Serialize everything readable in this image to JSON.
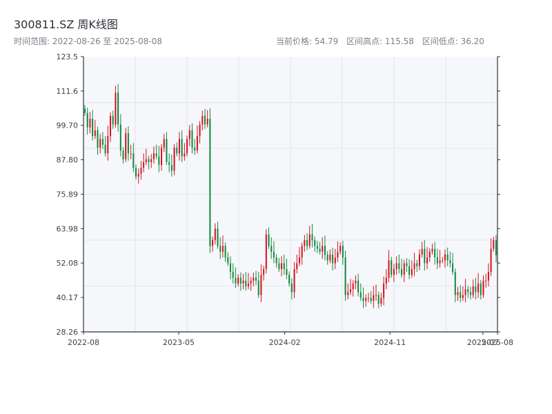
{
  "header": {
    "title": "300811.SZ 周K线图",
    "subtitle": "时间范围: 2022-08-26 至 2025-08-08",
    "current_price": "当前价格: 54.79",
    "range_high": "区间高点: 115.58",
    "range_low": "区间低点: 36.20"
  },
  "colors": {
    "up": "#d6101f",
    "down": "#0f8a3c",
    "plot_bg": "#f5f7fa",
    "grid": "#e1e5ea",
    "axis": "#2b2f36"
  },
  "chart_data": {
    "type": "candlestick",
    "title": "300811.SZ 周K线图",
    "xlabel": "",
    "ylabel": "",
    "x_range": [
      "2022-08-26",
      "2025-08-08"
    ],
    "ylim": [
      28.26,
      123.5
    ],
    "y_ticks": [
      "28.26",
      "40.17",
      "52.08",
      "63.98",
      "75.89",
      "87.80",
      "99.70",
      "111.6",
      "123.5"
    ],
    "x_ticks": [
      {
        "date": "2022-08-26",
        "label": "2022-08"
      },
      {
        "date": "2023-05-01",
        "label": "2023-05"
      },
      {
        "date": "2024-02-01",
        "label": "2024-02"
      },
      {
        "date": "2024-11-01",
        "label": "2024-11"
      },
      {
        "date": "2025-07-01",
        "label": "2025-07"
      },
      {
        "date": "2025-08-08",
        "label": "2025-08"
      }
    ],
    "grid": true,
    "up_color_meaning": "red = close above open",
    "closes": [
      104.0,
      99.0,
      102.0,
      96.0,
      98.0,
      92.0,
      95.0,
      93.0,
      90.0,
      96.0,
      103.0,
      100.0,
      111.0,
      100.0,
      91.0,
      88.0,
      97.0,
      90.0,
      90.0,
      85.0,
      82.0,
      83.0,
      85.0,
      87.0,
      88.0,
      87.0,
      88.0,
      90.0,
      89.0,
      86.0,
      92.0,
      95.0,
      87.0,
      86.0,
      84.0,
      92.0,
      90.0,
      95.0,
      89.0,
      90.0,
      95.0,
      98.0,
      92.0,
      91.0,
      96.0,
      100.0,
      103.0,
      100.0,
      102.0,
      58.0,
      60.0,
      64.0,
      58.0,
      56.0,
      58.0,
      54.0,
      52.0,
      49.0,
      47.0,
      45.0,
      47.0,
      45.0,
      46.0,
      44.0,
      45.0,
      46.0,
      47.0,
      46.0,
      41.0,
      48.0,
      50.0,
      62.0,
      58.0,
      56.0,
      54.0,
      52.0,
      50.0,
      52.0,
      50.0,
      48.0,
      45.0,
      42.0,
      50.0,
      52.0,
      54.0,
      58.0,
      60.0,
      58.0,
      62.0,
      60.0,
      58.0,
      57.0,
      56.0,
      58.0,
      55.0,
      53.0,
      55.0,
      52.0,
      54.0,
      56.0,
      58.0,
      54.0,
      41.0,
      42.0,
      43.0,
      45.0,
      46.0,
      42.0,
      40.0,
      39.0,
      40.0,
      40.0,
      39.0,
      41.0,
      41.0,
      38.0,
      40.0,
      45.0,
      47.0,
      53.0,
      48.0,
      50.0,
      52.0,
      50.0,
      48.0,
      52.0,
      51.0,
      48.0,
      50.0,
      52.0,
      51.0,
      55.0,
      57.0,
      52.0,
      54.0,
      56.0,
      57.0,
      54.0,
      52.0,
      53.0,
      53.0,
      55.0,
      53.0,
      52.0,
      49.0,
      41.0,
      42.0,
      40.0,
      41.0,
      43.0,
      42.0,
      41.0,
      44.0,
      42.0,
      45.0,
      41.0,
      46.0,
      46.0,
      49.0,
      57.0,
      60.0,
      54.8
    ]
  }
}
